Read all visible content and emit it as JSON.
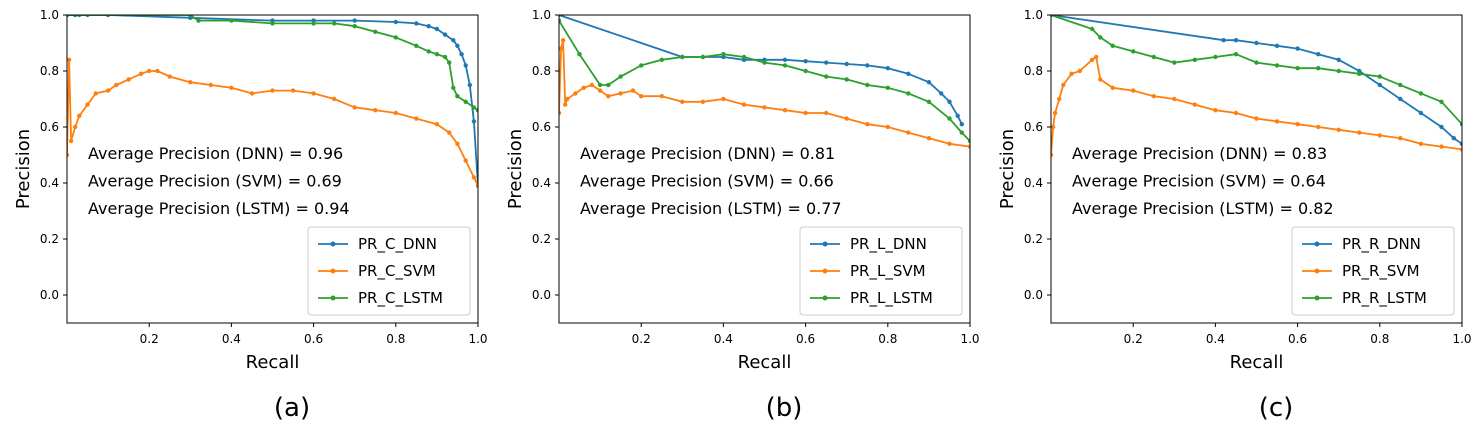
{
  "chart_data": [
    {
      "type": "line",
      "caption": "(a)",
      "xlabel": "Recall",
      "ylabel": "Precision",
      "xlim": [
        0.0,
        1.0
      ],
      "ylim": [
        -0.1,
        1.0
      ],
      "xticks": [
        0.2,
        0.4,
        0.6,
        0.8,
        1.0
      ],
      "xtick_labels": [
        "0.2",
        "0.4",
        "0.6",
        "0.8",
        "1.0"
      ],
      "yticks": [
        0.0,
        0.2,
        0.4,
        0.6,
        0.8,
        1.0
      ],
      "ytick_labels": [
        "0.0",
        "0.2",
        "0.4",
        "0.6",
        "0.8",
        "1.0"
      ],
      "grid": false,
      "legend_position": "lower-right",
      "annotations": [
        "Average Precision (DNN) = 0.96",
        "Average Precision (SVM) = 0.69",
        "Average Precision (LSTM) = 0.94"
      ],
      "series": [
        {
          "name": "PR_C_DNN",
          "color": "#1f77b4",
          "x": [
            0.0,
            0.02,
            0.1,
            0.3,
            0.5,
            0.6,
            0.7,
            0.8,
            0.85,
            0.88,
            0.9,
            0.92,
            0.94,
            0.95,
            0.96,
            0.97,
            0.98,
            0.99,
            1.0
          ],
          "y": [
            1.0,
            1.0,
            1.0,
            0.99,
            0.98,
            0.98,
            0.98,
            0.975,
            0.97,
            0.96,
            0.95,
            0.93,
            0.91,
            0.89,
            0.86,
            0.82,
            0.75,
            0.62,
            0.39
          ]
        },
        {
          "name": "PR_C_SVM",
          "color": "#ff7f0e",
          "x": [
            0.0,
            0.005,
            0.01,
            0.02,
            0.03,
            0.05,
            0.07,
            0.1,
            0.12,
            0.15,
            0.18,
            0.2,
            0.22,
            0.25,
            0.3,
            0.35,
            0.4,
            0.45,
            0.5,
            0.55,
            0.6,
            0.65,
            0.7,
            0.75,
            0.8,
            0.85,
            0.9,
            0.93,
            0.95,
            0.97,
            0.99,
            1.0
          ],
          "y": [
            0.5,
            0.84,
            0.55,
            0.6,
            0.64,
            0.68,
            0.72,
            0.73,
            0.75,
            0.77,
            0.79,
            0.8,
            0.8,
            0.78,
            0.76,
            0.75,
            0.74,
            0.72,
            0.73,
            0.73,
            0.72,
            0.7,
            0.67,
            0.66,
            0.65,
            0.63,
            0.61,
            0.58,
            0.54,
            0.48,
            0.42,
            0.39
          ]
        },
        {
          "name": "PR_C_LSTM",
          "color": "#2ca02c",
          "x": [
            0.0,
            0.03,
            0.05,
            0.1,
            0.2,
            0.3,
            0.32,
            0.4,
            0.5,
            0.6,
            0.65,
            0.7,
            0.75,
            0.8,
            0.85,
            0.88,
            0.9,
            0.92,
            0.93,
            0.94,
            0.95,
            0.97,
            0.99,
            1.0
          ],
          "y": [
            1.0,
            1.0,
            1.0,
            1.0,
            1.0,
            1.0,
            0.98,
            0.98,
            0.97,
            0.97,
            0.97,
            0.96,
            0.94,
            0.92,
            0.89,
            0.87,
            0.86,
            0.85,
            0.83,
            0.74,
            0.71,
            0.69,
            0.67,
            0.66
          ]
        }
      ]
    },
    {
      "type": "line",
      "caption": "(b)",
      "xlabel": "Recall",
      "ylabel": "Precision",
      "xlim": [
        0.0,
        1.0
      ],
      "ylim": [
        -0.1,
        1.0
      ],
      "xticks": [
        0.2,
        0.4,
        0.6,
        0.8,
        1.0
      ],
      "xtick_labels": [
        "0.2",
        "0.4",
        "0.6",
        "0.8",
        "1.0"
      ],
      "yticks": [
        0.0,
        0.2,
        0.4,
        0.6,
        0.8,
        1.0
      ],
      "ytick_labels": [
        "0.0",
        "0.2",
        "0.4",
        "0.6",
        "0.8",
        "1.0"
      ],
      "grid": false,
      "legend_position": "lower-right",
      "annotations": [
        "Average Precision (DNN) = 0.81",
        "Average Precision (SVM) = 0.66",
        "Average Precision (LSTM) = 0.77"
      ],
      "series": [
        {
          "name": "PR_L_DNN",
          "color": "#1f77b4",
          "x": [
            0.0,
            0.3,
            0.35,
            0.4,
            0.45,
            0.5,
            0.55,
            0.6,
            0.65,
            0.7,
            0.75,
            0.8,
            0.85,
            0.9,
            0.93,
            0.95,
            0.97,
            0.98
          ],
          "y": [
            1.0,
            0.85,
            0.85,
            0.85,
            0.84,
            0.84,
            0.84,
            0.835,
            0.83,
            0.825,
            0.82,
            0.81,
            0.79,
            0.76,
            0.72,
            0.69,
            0.64,
            0.61
          ]
        },
        {
          "name": "PR_L_SVM",
          "color": "#ff7f0e",
          "x": [
            0.0,
            0.005,
            0.01,
            0.015,
            0.02,
            0.04,
            0.06,
            0.08,
            0.1,
            0.12,
            0.15,
            0.18,
            0.2,
            0.25,
            0.3,
            0.35,
            0.4,
            0.45,
            0.5,
            0.55,
            0.6,
            0.65,
            0.7,
            0.75,
            0.8,
            0.85,
            0.9,
            0.95,
            1.0
          ],
          "y": [
            0.65,
            0.88,
            0.91,
            0.68,
            0.7,
            0.72,
            0.74,
            0.75,
            0.73,
            0.71,
            0.72,
            0.73,
            0.71,
            0.71,
            0.69,
            0.69,
            0.7,
            0.68,
            0.67,
            0.66,
            0.65,
            0.65,
            0.63,
            0.61,
            0.6,
            0.58,
            0.56,
            0.54,
            0.53
          ]
        },
        {
          "name": "PR_L_LSTM",
          "color": "#2ca02c",
          "x": [
            0.0,
            0.05,
            0.1,
            0.12,
            0.15,
            0.2,
            0.25,
            0.3,
            0.35,
            0.4,
            0.45,
            0.5,
            0.55,
            0.6,
            0.65,
            0.7,
            0.75,
            0.8,
            0.85,
            0.9,
            0.95,
            0.98,
            1.0
          ],
          "y": [
            0.98,
            0.86,
            0.75,
            0.75,
            0.78,
            0.82,
            0.84,
            0.85,
            0.85,
            0.86,
            0.85,
            0.83,
            0.82,
            0.8,
            0.78,
            0.77,
            0.75,
            0.74,
            0.72,
            0.69,
            0.63,
            0.58,
            0.55
          ]
        }
      ]
    },
    {
      "type": "line",
      "caption": "(c)",
      "xlabel": "Recall",
      "ylabel": "Precision",
      "xlim": [
        0.0,
        1.0
      ],
      "ylim": [
        -0.1,
        1.0
      ],
      "xticks": [
        0.2,
        0.4,
        0.6,
        0.8,
        1.0
      ],
      "xtick_labels": [
        "0.2",
        "0.4",
        "0.6",
        "0.8",
        "1.0"
      ],
      "yticks": [
        0.0,
        0.2,
        0.4,
        0.6,
        0.8,
        1.0
      ],
      "ytick_labels": [
        "0.0",
        "0.2",
        "0.4",
        "0.6",
        "0.8",
        "1.0"
      ],
      "grid": false,
      "legend_position": "lower-right",
      "annotations": [
        "Average Precision (DNN) = 0.83",
        "Average Precision (SVM) = 0.64",
        "Average Precision (LSTM) = 0.82"
      ],
      "series": [
        {
          "name": "PR_R_DNN",
          "color": "#1f77b4",
          "x": [
            0.0,
            0.42,
            0.45,
            0.5,
            0.55,
            0.6,
            0.65,
            0.7,
            0.75,
            0.8,
            0.85,
            0.9,
            0.95,
            0.98,
            1.0
          ],
          "y": [
            1.0,
            0.91,
            0.91,
            0.9,
            0.89,
            0.88,
            0.86,
            0.84,
            0.8,
            0.75,
            0.7,
            0.65,
            0.6,
            0.56,
            0.54
          ]
        },
        {
          "name": "PR_R_SVM",
          "color": "#ff7f0e",
          "x": [
            0.0,
            0.005,
            0.01,
            0.02,
            0.03,
            0.05,
            0.07,
            0.1,
            0.11,
            0.12,
            0.15,
            0.2,
            0.25,
            0.3,
            0.35,
            0.4,
            0.45,
            0.5,
            0.55,
            0.6,
            0.65,
            0.7,
            0.75,
            0.8,
            0.85,
            0.9,
            0.95,
            1.0
          ],
          "y": [
            0.5,
            0.6,
            0.65,
            0.7,
            0.75,
            0.79,
            0.8,
            0.84,
            0.85,
            0.77,
            0.74,
            0.73,
            0.71,
            0.7,
            0.68,
            0.66,
            0.65,
            0.63,
            0.62,
            0.61,
            0.6,
            0.59,
            0.58,
            0.57,
            0.56,
            0.54,
            0.53,
            0.52
          ]
        },
        {
          "name": "PR_R_LSTM",
          "color": "#2ca02c",
          "x": [
            0.0,
            0.1,
            0.12,
            0.15,
            0.2,
            0.25,
            0.3,
            0.35,
            0.4,
            0.45,
            0.5,
            0.55,
            0.6,
            0.65,
            0.7,
            0.75,
            0.8,
            0.85,
            0.9,
            0.95,
            1.0
          ],
          "y": [
            1.0,
            0.95,
            0.92,
            0.89,
            0.87,
            0.85,
            0.83,
            0.84,
            0.85,
            0.86,
            0.83,
            0.82,
            0.81,
            0.81,
            0.8,
            0.79,
            0.78,
            0.75,
            0.72,
            0.69,
            0.61
          ]
        }
      ]
    }
  ]
}
